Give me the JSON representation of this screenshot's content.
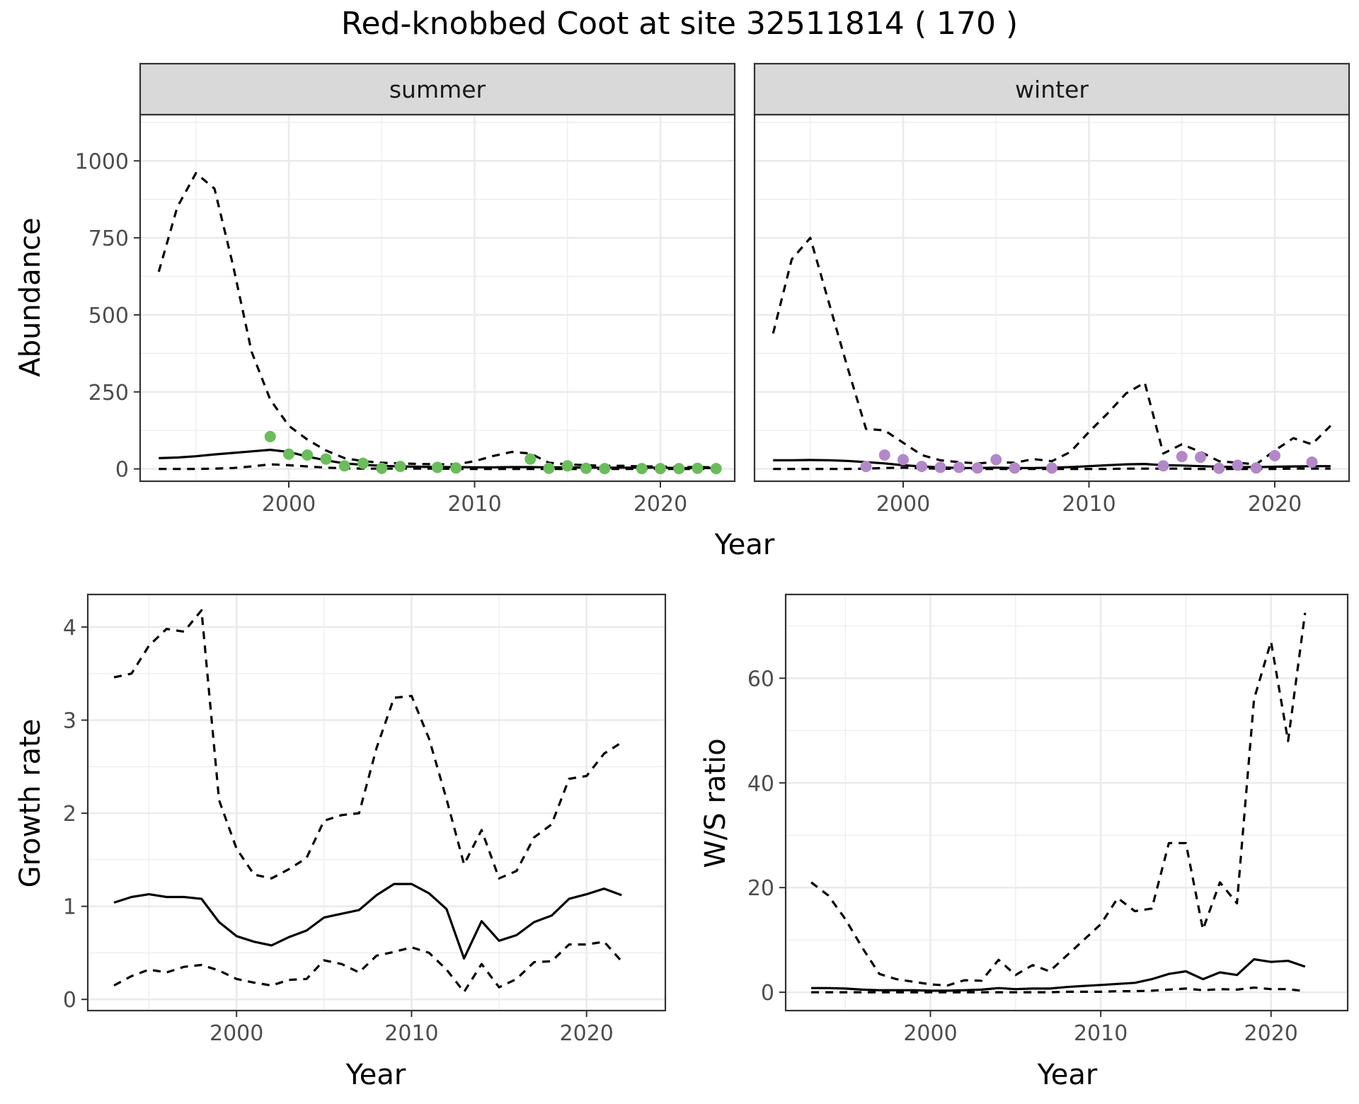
{
  "figure": {
    "title": "Red-knobbed Coot at site 32511814 ( 170 )"
  },
  "colors": {
    "summer_points": "#6abd5a",
    "winter_points": "#b388c9",
    "lines": "#000000",
    "strip_bg": "#d9d9d9",
    "grid": "#ebebeb",
    "axis_text": "#4d4d4d"
  },
  "chart_data": [
    {
      "type": "line",
      "panel": "summer",
      "strip_label": "summer",
      "xlabel": "Year",
      "ylabel": "Abundance",
      "xlim": [
        1992,
        2024
      ],
      "ylim": [
        -40,
        1150
      ],
      "x_ticks": [
        2000,
        2010,
        2020
      ],
      "y_ticks": [
        0,
        250,
        500,
        750,
        1000
      ],
      "grid": true,
      "series": [
        {
          "role": "mean",
          "style": "solid",
          "x": [
            1993,
            1994,
            1995,
            1996,
            1997,
            1998,
            1999,
            2000,
            2001,
            2002,
            2003,
            2004,
            2005,
            2006,
            2007,
            2008,
            2009,
            2010,
            2011,
            2012,
            2013,
            2014,
            2015,
            2016,
            2017,
            2018,
            2019,
            2020,
            2021,
            2022,
            2023
          ],
          "y": [
            35,
            37,
            41,
            47,
            52,
            57,
            62,
            55,
            40,
            28,
            18,
            13,
            10,
            8,
            7,
            6,
            6,
            5,
            5,
            6,
            6,
            5,
            5,
            4,
            4,
            4,
            4,
            4,
            3,
            3,
            3
          ]
        },
        {
          "role": "upper",
          "style": "dashed",
          "x": [
            1993,
            1994,
            1995,
            1996,
            1997,
            1998,
            1999,
            2000,
            2001,
            2002,
            2003,
            2004,
            2005,
            2006,
            2007,
            2008,
            2009,
            2010,
            2011,
            2012,
            2013,
            2014,
            2015,
            2016,
            2017,
            2018,
            2019,
            2020,
            2021,
            2022,
            2023
          ],
          "y": [
            640,
            850,
            960,
            910,
            660,
            380,
            225,
            140,
            95,
            60,
            35,
            25,
            20,
            18,
            16,
            15,
            15,
            25,
            42,
            55,
            50,
            20,
            15,
            12,
            10,
            10,
            8,
            8,
            6,
            6,
            5
          ]
        },
        {
          "role": "lower",
          "style": "dashed",
          "x": [
            1993,
            1994,
            1995,
            1996,
            1997,
            1998,
            1999,
            2000,
            2001,
            2002,
            2003,
            2004,
            2005,
            2006,
            2007,
            2008,
            2009,
            2010,
            2011,
            2012,
            2013,
            2014,
            2015,
            2016,
            2017,
            2018,
            2019,
            2020,
            2021,
            2022,
            2023
          ],
          "y": [
            0,
            0,
            0,
            1,
            3,
            8,
            15,
            12,
            8,
            4,
            2,
            1,
            1,
            1,
            1,
            1,
            0,
            0,
            0,
            0,
            0,
            0,
            0,
            0,
            0,
            0,
            0,
            0,
            0,
            0,
            0
          ]
        }
      ],
      "points": {
        "x": [
          1999,
          2000,
          2001,
          2002,
          2003,
          2004,
          2005,
          2006,
          2008,
          2009,
          2013,
          2014,
          2015,
          2016,
          2017,
          2019,
          2020,
          2021,
          2022,
          2023
        ],
        "y": [
          105,
          48,
          45,
          32,
          10,
          18,
          2,
          8,
          5,
          3,
          32,
          2,
          10,
          2,
          1,
          1,
          1,
          1,
          2,
          1
        ]
      }
    },
    {
      "type": "line",
      "panel": "winter",
      "strip_label": "winter",
      "xlabel": "Year",
      "ylabel": "Abundance",
      "xlim": [
        1992,
        2024
      ],
      "ylim": [
        -40,
        1150
      ],
      "x_ticks": [
        2000,
        2010,
        2020
      ],
      "y_ticks": [
        0,
        250,
        500,
        750,
        1000
      ],
      "grid": true,
      "series": [
        {
          "role": "mean",
          "style": "solid",
          "x": [
            1993,
            1994,
            1995,
            1996,
            1997,
            1998,
            1999,
            2000,
            2001,
            2002,
            2003,
            2004,
            2005,
            2006,
            2007,
            2008,
            2009,
            2010,
            2011,
            2012,
            2013,
            2014,
            2015,
            2016,
            2017,
            2018,
            2019,
            2020,
            2021,
            2022,
            2023
          ],
          "y": [
            28,
            28,
            29,
            28,
            26,
            22,
            18,
            12,
            8,
            5,
            3,
            3,
            4,
            3,
            3,
            4,
            6,
            9,
            12,
            15,
            16,
            12,
            11,
            9,
            7,
            6,
            6,
            7,
            8,
            9,
            9
          ]
        },
        {
          "role": "upper",
          "style": "dashed",
          "x": [
            1993,
            1994,
            1995,
            1996,
            1997,
            1998,
            1999,
            2000,
            2001,
            2002,
            2003,
            2004,
            2005,
            2006,
            2007,
            2008,
            2009,
            2010,
            2011,
            2012,
            2013,
            2014,
            2015,
            2016,
            2017,
            2018,
            2019,
            2020,
            2021,
            2022,
            2023
          ],
          "y": [
            440,
            680,
            750,
            540,
            330,
            130,
            125,
            85,
            45,
            28,
            22,
            18,
            22,
            20,
            32,
            25,
            55,
            120,
            180,
            245,
            280,
            50,
            80,
            55,
            25,
            20,
            15,
            60,
            100,
            80,
            140
          ]
        },
        {
          "role": "lower",
          "style": "dashed",
          "x": [
            1993,
            1994,
            1995,
            1996,
            1997,
            1998,
            1999,
            2000,
            2001,
            2002,
            2003,
            2004,
            2005,
            2006,
            2007,
            2008,
            2009,
            2010,
            2011,
            2012,
            2013,
            2014,
            2015,
            2016,
            2017,
            2018,
            2019,
            2020,
            2021,
            2022,
            2023
          ],
          "y": [
            0,
            0,
            0,
            0,
            0,
            1,
            3,
            4,
            2,
            1,
            0,
            0,
            0,
            0,
            0,
            0,
            0,
            0,
            0,
            1,
            1,
            1,
            1,
            0,
            0,
            0,
            0,
            0,
            1,
            1,
            1
          ]
        }
      ],
      "points": {
        "x": [
          1998,
          1999,
          2000,
          2001,
          2002,
          2003,
          2004,
          2005,
          2006,
          2008,
          2014,
          2015,
          2016,
          2017,
          2018,
          2019,
          2020,
          2022
        ],
        "y": [
          8,
          45,
          30,
          8,
          5,
          5,
          3,
          30,
          3,
          3,
          10,
          40,
          38,
          2,
          12,
          3,
          43,
          22
        ]
      }
    },
    {
      "type": "line",
      "panel": "growth",
      "xlabel": "Year",
      "ylabel": "Growth rate",
      "xlim": [
        1991.5,
        2024.5
      ],
      "ylim": [
        -0.12,
        4.35
      ],
      "x_ticks": [
        2000,
        2010,
        2020
      ],
      "y_ticks": [
        0,
        1,
        2,
        3,
        4
      ],
      "grid": true,
      "series": [
        {
          "role": "mean",
          "style": "solid",
          "x": [
            1993,
            1994,
            1995,
            1996,
            1997,
            1998,
            1999,
            2000,
            2001,
            2002,
            2003,
            2004,
            2005,
            2006,
            2007,
            2008,
            2009,
            2010,
            2011,
            2012,
            2013,
            2014,
            2015,
            2016,
            2017,
            2018,
            2019,
            2020,
            2021,
            2022
          ],
          "y": [
            1.04,
            1.1,
            1.13,
            1.1,
            1.1,
            1.08,
            0.83,
            0.68,
            0.62,
            0.58,
            0.67,
            0.74,
            0.88,
            0.92,
            0.96,
            1.12,
            1.24,
            1.24,
            1.14,
            0.97,
            0.44,
            0.84,
            0.63,
            0.69,
            0.83,
            0.9,
            1.08,
            1.13,
            1.19,
            1.12
          ]
        },
        {
          "role": "upper",
          "style": "dashed",
          "x": [
            1993,
            1994,
            1995,
            1996,
            1997,
            1998,
            1999,
            2000,
            2001,
            2002,
            2003,
            2004,
            2005,
            2006,
            2007,
            2008,
            2009,
            2010,
            2011,
            2012,
            2013,
            2014,
            2015,
            2016,
            2017,
            2018,
            2019,
            2020,
            2021,
            2022
          ],
          "y": [
            3.46,
            3.5,
            3.8,
            3.98,
            3.95,
            4.18,
            2.14,
            1.62,
            1.34,
            1.3,
            1.4,
            1.52,
            1.92,
            1.98,
            2.0,
            2.7,
            3.24,
            3.26,
            2.8,
            2.15,
            1.45,
            1.82,
            1.3,
            1.38,
            1.74,
            1.88,
            2.37,
            2.4,
            2.64,
            2.76
          ]
        },
        {
          "role": "lower",
          "style": "dashed",
          "x": [
            1993,
            1994,
            1995,
            1996,
            1997,
            1998,
            1999,
            2000,
            2001,
            2002,
            2003,
            2004,
            2005,
            2006,
            2007,
            2008,
            2009,
            2010,
            2011,
            2012,
            2013,
            2014,
            2015,
            2016,
            2017,
            2018,
            2019,
            2020,
            2021,
            2022
          ],
          "y": [
            0.15,
            0.25,
            0.32,
            0.29,
            0.35,
            0.37,
            0.31,
            0.22,
            0.18,
            0.15,
            0.21,
            0.22,
            0.42,
            0.38,
            0.29,
            0.47,
            0.51,
            0.56,
            0.5,
            0.32,
            0.08,
            0.38,
            0.13,
            0.22,
            0.4,
            0.41,
            0.59,
            0.59,
            0.62,
            0.41
          ]
        }
      ]
    },
    {
      "type": "line",
      "panel": "ws_ratio",
      "xlabel": "Year",
      "ylabel": "W/S ratio",
      "xlim": [
        1991.5,
        2024.5
      ],
      "ylim": [
        -3.5,
        76
      ],
      "x_ticks": [
        2000,
        2010,
        2020
      ],
      "y_ticks": [
        0,
        20,
        40,
        60
      ],
      "grid": true,
      "series": [
        {
          "role": "mean",
          "style": "solid",
          "x": [
            1993,
            1994,
            1995,
            1996,
            1997,
            1998,
            1999,
            2000,
            2001,
            2002,
            2003,
            2004,
            2005,
            2006,
            2007,
            2008,
            2009,
            2010,
            2011,
            2012,
            2013,
            2014,
            2015,
            2016,
            2017,
            2018,
            2019,
            2020,
            2021,
            2022
          ],
          "y": [
            0.8,
            0.8,
            0.7,
            0.5,
            0.4,
            0.4,
            0.4,
            0.3,
            0.3,
            0.4,
            0.5,
            0.8,
            0.6,
            0.7,
            0.7,
            1.0,
            1.2,
            1.4,
            1.6,
            1.8,
            2.5,
            3.5,
            4.0,
            2.5,
            3.8,
            3.3,
            6.3,
            5.8,
            6.0,
            4.9
          ]
        },
        {
          "role": "upper",
          "style": "dashed",
          "x": [
            1993,
            1994,
            1995,
            1996,
            1997,
            1998,
            1999,
            2000,
            2001,
            2002,
            2003,
            2004,
            2005,
            2006,
            2007,
            2008,
            2009,
            2010,
            2011,
            2012,
            2013,
            2014,
            2015,
            2016,
            2017,
            2018,
            2019,
            2020,
            2021,
            2022
          ],
          "y": [
            21,
            18.5,
            14,
            8.5,
            3.5,
            2.5,
            2,
            1.5,
            1.3,
            2.3,
            2.2,
            6.2,
            3.3,
            5.2,
            4.0,
            7.0,
            10,
            13,
            18,
            15.5,
            16,
            28.5,
            28.5,
            12,
            21,
            17,
            56,
            67,
            48,
            72.5
          ]
        },
        {
          "role": "lower",
          "style": "dashed",
          "x": [
            1993,
            1994,
            1995,
            1996,
            1997,
            1998,
            1999,
            2000,
            2001,
            2002,
            2003,
            2004,
            2005,
            2006,
            2007,
            2008,
            2009,
            2010,
            2011,
            2012,
            2013,
            2014,
            2015,
            2016,
            2017,
            2018,
            2019,
            2020,
            2021,
            2022
          ],
          "y": [
            0,
            0,
            0,
            0,
            0,
            0,
            0,
            0,
            0,
            0,
            0,
            0,
            0,
            0,
            0,
            0.1,
            0.1,
            0.1,
            0.2,
            0.2,
            0.3,
            0.5,
            0.7,
            0.4,
            0.6,
            0.5,
            0.9,
            0.6,
            0.6,
            0.2
          ]
        }
      ]
    }
  ]
}
